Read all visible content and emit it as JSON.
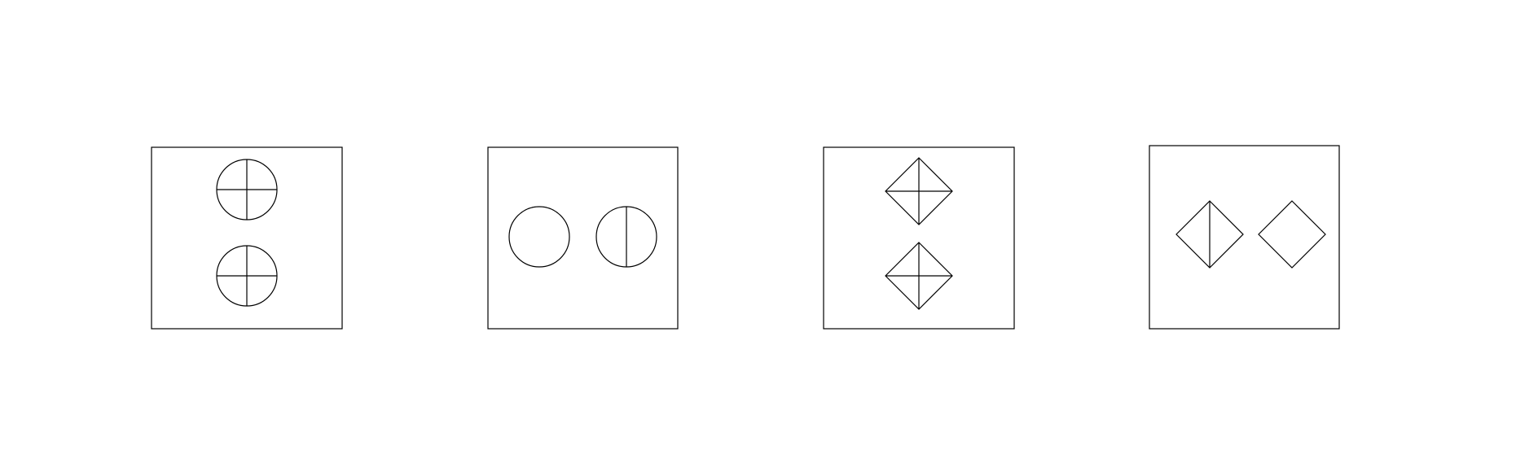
{
  "colors": {
    "background": "#ffffff",
    "stroke": "#000000"
  },
  "panels": [
    {
      "label": "",
      "arrangement": "vertical",
      "figures": [
        {
          "shape": "circle",
          "dividers": [
            "horizontal",
            "vertical"
          ]
        },
        {
          "shape": "circle",
          "dividers": [
            "horizontal",
            "vertical"
          ]
        }
      ]
    },
    {
      "label": "",
      "arrangement": "horizontal",
      "figures": [
        {
          "shape": "circle",
          "dividers": []
        },
        {
          "shape": "circle",
          "dividers": [
            "vertical"
          ]
        }
      ]
    },
    {
      "label": "",
      "arrangement": "vertical",
      "figures": [
        {
          "shape": "diamond",
          "dividers": [
            "horizontal",
            "vertical"
          ]
        },
        {
          "shape": "diamond",
          "dividers": [
            "horizontal",
            "vertical"
          ]
        }
      ]
    },
    {
      "label": "",
      "arrangement": "horizontal",
      "figures": [
        {
          "shape": "diamond",
          "dividers": [
            "vertical"
          ]
        },
        {
          "shape": "diamond",
          "dividers": []
        }
      ]
    }
  ]
}
